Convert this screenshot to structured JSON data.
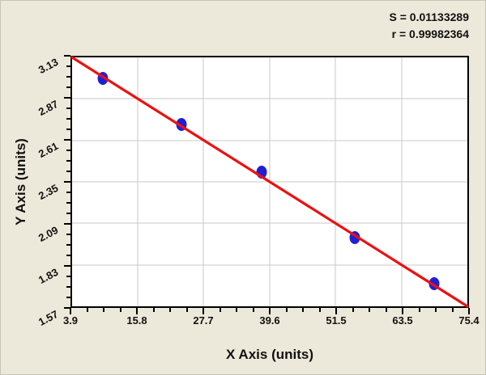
{
  "stats": {
    "s_label": "S = 0.01133289",
    "r_label": "r = 0.99982364"
  },
  "axes": {
    "x_title": "X Axis (units)",
    "y_title": "Y Axis (units)"
  },
  "colors": {
    "background": "#EDE9DA",
    "plot_background": "#FFFFFF",
    "grid_line": "#C9C9C9",
    "axis_frame": "#000000",
    "regression_line": "#EE1010",
    "data_point": "#1F1FD6",
    "text": "#111111",
    "outer_edge": "#C8C3B3"
  },
  "chart_data": {
    "type": "scatter",
    "title": "",
    "xlabel": "X Axis (units)",
    "ylabel": "Y Axis (units)",
    "xlim": [
      3.9,
      75.4
    ],
    "ylim": [
      1.57,
      3.13
    ],
    "x_ticks": [
      3.9,
      15.8,
      27.7,
      39.6,
      51.5,
      63.5,
      75.4
    ],
    "y_ticks": [
      1.57,
      1.83,
      2.09,
      2.35,
      2.61,
      2.87,
      3.13
    ],
    "minor_ticks_per_major": 4,
    "grid": true,
    "legend_position": "none",
    "points": [
      {
        "x": 9.4,
        "y": 3.0
      },
      {
        "x": 23.7,
        "y": 2.71
      },
      {
        "x": 38.2,
        "y": 2.41
      },
      {
        "x": 55.1,
        "y": 2.0
      },
      {
        "x": 69.4,
        "y": 1.71
      }
    ],
    "fit_line": {
      "x1": 3.9,
      "y1": 3.13,
      "x2": 75.4,
      "y2": 1.57
    },
    "annotations": [
      "S = 0.01133289",
      "r = 0.99982364"
    ]
  }
}
